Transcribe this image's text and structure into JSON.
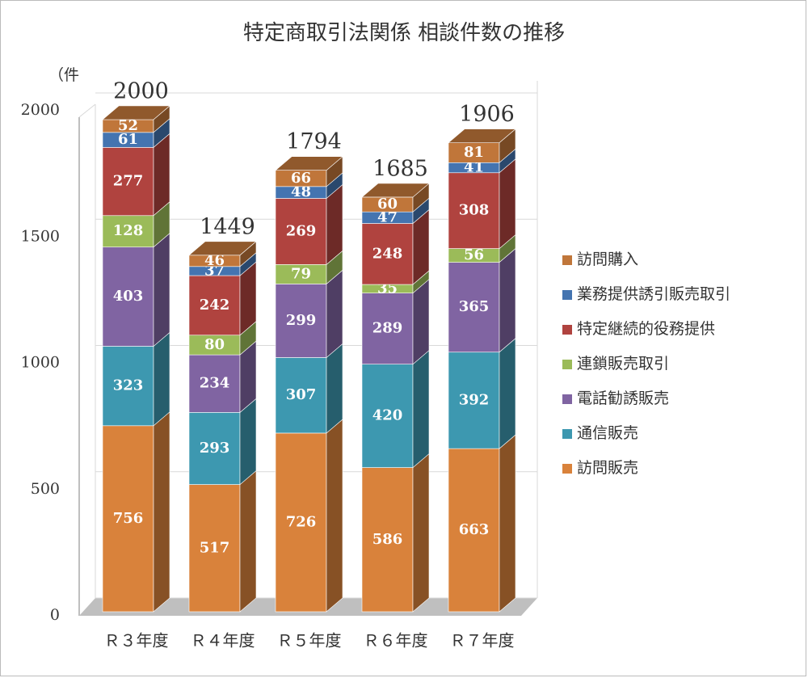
{
  "chart_data": {
    "type": "bar3d-stacked",
    "title": "特定商取引法関係 相談件数の推移",
    "y_label": "（件",
    "categories": [
      "Ｒ３年度",
      "Ｒ４年度",
      "Ｒ５年度",
      "Ｒ６年度",
      "Ｒ７年度"
    ],
    "series": [
      {
        "name": "訪問販売",
        "color": "#d9823b",
        "values": [
          756,
          517,
          726,
          586,
          663
        ]
      },
      {
        "name": "通信販売",
        "color": "#3d98b0",
        "values": [
          323,
          293,
          307,
          420,
          392
        ]
      },
      {
        "name": "電話勧誘販売",
        "color": "#8064a2",
        "values": [
          403,
          234,
          299,
          289,
          365
        ]
      },
      {
        "name": "連鎖販売取引",
        "color": "#9bbb59",
        "values": [
          128,
          80,
          79,
          35,
          56
        ]
      },
      {
        "name": "特定継続的役務提供",
        "color": "#b0433f",
        "values": [
          277,
          242,
          269,
          248,
          308
        ]
      },
      {
        "name": "業務提供誘引販売取引",
        "color": "#4474b0",
        "values": [
          61,
          37,
          48,
          47,
          41
        ]
      },
      {
        "name": "訪問購入",
        "color": "#c0763a",
        "values": [
          52,
          46,
          66,
          60,
          81
        ]
      }
    ],
    "totals": [
      2000,
      1449,
      1794,
      1685,
      1906
    ],
    "ylim": [
      0,
      2000
    ],
    "yticks": [
      0,
      500,
      1000,
      1500,
      2000
    ],
    "grid": true,
    "legend": "right"
  }
}
